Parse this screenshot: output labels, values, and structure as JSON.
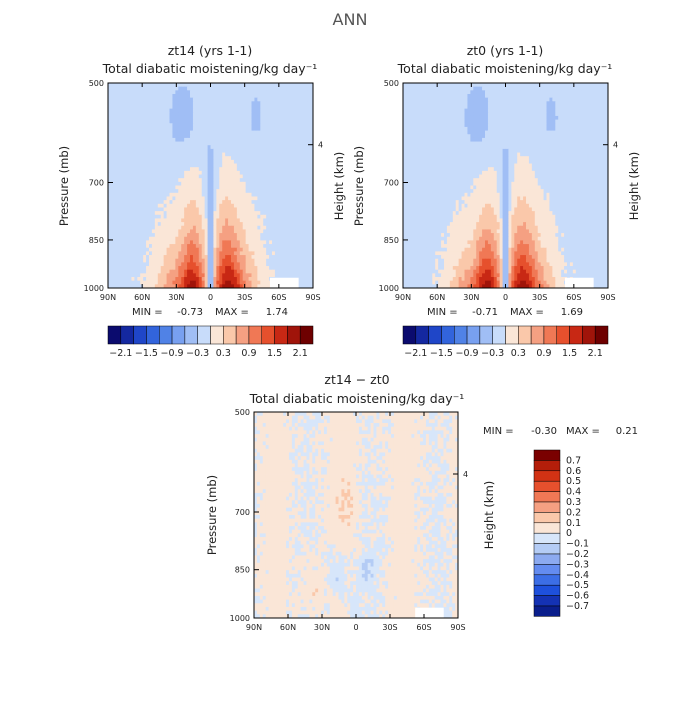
{
  "figure": {
    "title": "ANN"
  },
  "chart_data": [
    {
      "type": "heatmap",
      "title": "zt14 (yrs 1-1)",
      "subtitle": "Total diabatic moistening/kg day⁻¹",
      "xlabel": "",
      "ylabel": "Pressure (mb)",
      "y2label": "Height (km)",
      "x_ticks": [
        "90N",
        "60N",
        "30N",
        "0",
        "30S",
        "60S",
        "90S"
      ],
      "y_ticks": [
        "500",
        "700",
        "850",
        "1000"
      ],
      "y_tick_values": [
        500,
        700,
        850,
        1000
      ],
      "y2_ticks": [
        "4"
      ],
      "xlim": [
        90,
        -90
      ],
      "ylim": [
        1000,
        500
      ],
      "min_label": "MIN =",
      "min": "-0.73",
      "max_label": "MAX =",
      "max": "1.74",
      "pattern": "tropical",
      "colorbar_labels": [
        "-2.1",
        "-1.5",
        "-0.9",
        "-0.3",
        "0.3",
        "0.9",
        "1.5",
        "2.1"
      ]
    },
    {
      "type": "heatmap",
      "title": "zt0 (yrs 1-1)",
      "subtitle": "Total diabatic moistening/kg day⁻¹",
      "xlabel": "",
      "ylabel": "Pressure (mb)",
      "y2label": "Height (km)",
      "x_ticks": [
        "90N",
        "60N",
        "30N",
        "0",
        "30S",
        "60S",
        "90S"
      ],
      "y_ticks": [
        "500",
        "700",
        "850",
        "1000"
      ],
      "y_tick_values": [
        500,
        700,
        850,
        1000
      ],
      "y2_ticks": [
        "4"
      ],
      "xlim": [
        90,
        -90
      ],
      "ylim": [
        1000,
        500
      ],
      "min_label": "MIN =",
      "min": "-0.71",
      "max_label": "MAX =",
      "max": "1.69",
      "pattern": "tropical",
      "colorbar_labels": [
        "-2.1",
        "-1.5",
        "-0.9",
        "-0.3",
        "0.3",
        "0.9",
        "1.5",
        "2.1"
      ]
    },
    {
      "type": "heatmap",
      "title": "zt14 − zt0",
      "subtitle": "Total diabatic moistening/kg day⁻¹",
      "xlabel": "",
      "ylabel": "Pressure (mb)",
      "y2label": "Height (km)",
      "x_ticks": [
        "90N",
        "60N",
        "30N",
        "0",
        "30S",
        "60S",
        "90S"
      ],
      "y_ticks": [
        "500",
        "700",
        "850",
        "1000"
      ],
      "y_tick_values": [
        500,
        700,
        850,
        1000
      ],
      "y2_ticks": [
        "4"
      ],
      "xlim": [
        90,
        -90
      ],
      "ylim": [
        1000,
        500
      ],
      "min_label": "MIN =",
      "min": "-0.30",
      "max_label": "MAX =",
      "max": "0.21",
      "pattern": "difference",
      "colorbar_labels": [
        "0.7",
        "0.6",
        "0.5",
        "0.4",
        "0.3",
        "0.2",
        "0.1",
        "0",
        "−0.1",
        "−0.2",
        "−0.3",
        "−0.4",
        "−0.5",
        "−0.6",
        "−0.7"
      ]
    }
  ],
  "colorbars": {
    "full_colors": [
      "#0b0b6e",
      "#1428a0",
      "#1f46c8",
      "#3264dc",
      "#5082e6",
      "#78a0f0",
      "#a0beF5",
      "#c8dcfa",
      "#fae6d7",
      "#fac8aa",
      "#f5a082",
      "#f07855",
      "#e6502d",
      "#c82814",
      "#a0140a",
      "#6e0000"
    ],
    "diff_colors": [
      "#7a0000",
      "#b41e0a",
      "#d23214",
      "#e6502d",
      "#f07855",
      "#f5a082",
      "#fac8aa",
      "#fae6d7",
      "#d7e6fa",
      "#b4ccf5",
      "#8caaf0",
      "#648cf0",
      "#3c6ee6",
      "#1e50dc",
      "#1432b4",
      "#0a1e8c"
    ]
  }
}
